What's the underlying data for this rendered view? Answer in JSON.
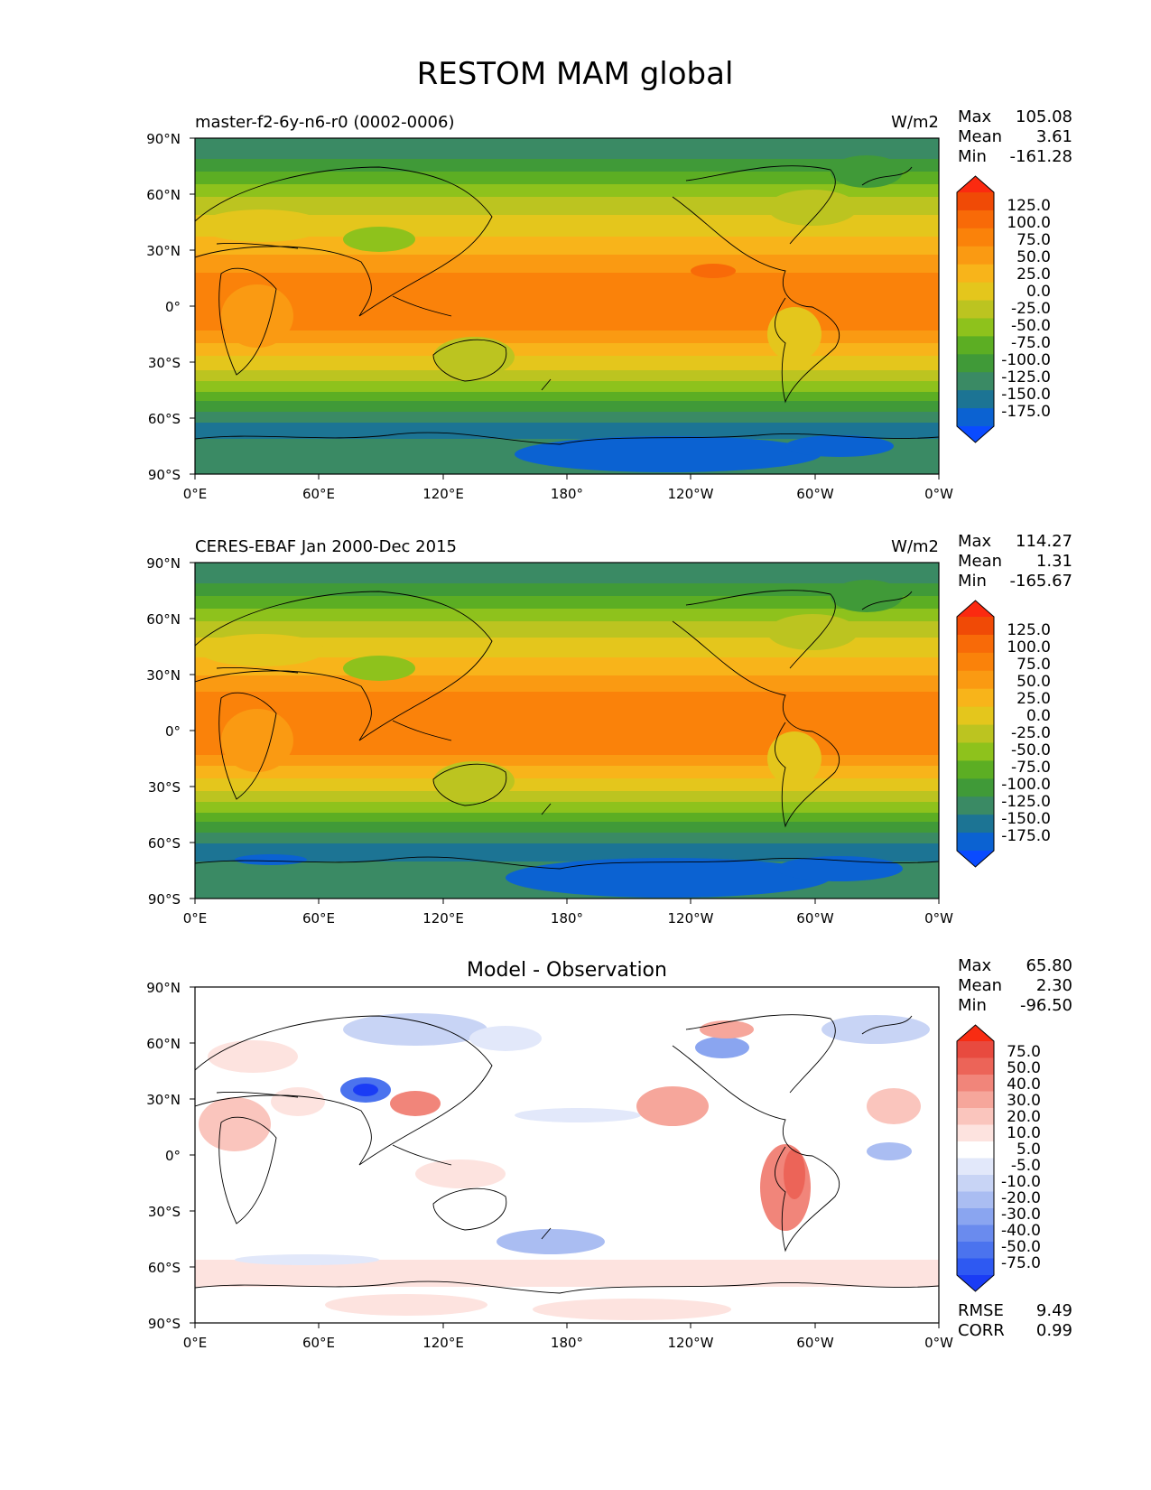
{
  "title": "RESTOM MAM global",
  "colors": {
    "main_scale": [
      "#0a4bff",
      "#0b62d2",
      "#1c7494",
      "#3a8a64",
      "#409a38",
      "#5cae23",
      "#8ec21c",
      "#bcc420",
      "#e4c61c",
      "#f8b41a",
      "#fa9a12",
      "#fa820a",
      "#f86a08",
      "#f04a06",
      "#fb2a10"
    ],
    "diff_scale": [
      "#1a3cf5",
      "#2e59f2",
      "#4b73ee",
      "#6a8bee",
      "#8aa5f0",
      "#aabdf2",
      "#c8d4f5",
      "#e2e8fa",
      "#ffffff",
      "#fde3df",
      "#fac5bd",
      "#f6a69b",
      "#f1857a",
      "#ec6458",
      "#e84a3f",
      "#f82c12"
    ]
  },
  "panels": [
    {
      "id": "model",
      "left_title": "master-f2-6y-n6-r0 (0002-0006)",
      "center_title": "",
      "units": "W/m2",
      "stats": [
        {
          "label": "Max",
          "value": "105.08"
        },
        {
          "label": "Mean",
          "value": "3.61"
        },
        {
          "label": "Min",
          "value": "-161.28"
        }
      ],
      "colorbar_levels": [
        "125.0",
        "100.0",
        "75.0",
        "50.0",
        "25.0",
        "0.0",
        "-25.0",
        "-50.0",
        "-75.0",
        "-100.0",
        "-125.0",
        "-150.0",
        "-175.0"
      ]
    },
    {
      "id": "obs",
      "left_title": "CERES-EBAF Jan 2000-Dec 2015",
      "center_title": "",
      "units": "W/m2",
      "stats": [
        {
          "label": "Max",
          "value": "114.27"
        },
        {
          "label": "Mean",
          "value": "1.31"
        },
        {
          "label": "Min",
          "value": "-165.67"
        }
      ],
      "colorbar_levels": [
        "125.0",
        "100.0",
        "75.0",
        "50.0",
        "25.0",
        "0.0",
        "-25.0",
        "-50.0",
        "-75.0",
        "-100.0",
        "-125.0",
        "-150.0",
        "-175.0"
      ]
    },
    {
      "id": "diff",
      "left_title": "",
      "center_title": "Model - Observation",
      "units": "",
      "stats": [
        {
          "label": "Max",
          "value": "65.80"
        },
        {
          "label": "Mean",
          "value": "2.30"
        },
        {
          "label": "Min",
          "value": "-96.50"
        }
      ],
      "colorbar_levels": [
        "75.0",
        "50.0",
        "40.0",
        "30.0",
        "20.0",
        "10.0",
        "5.0",
        "-5.0",
        "-10.0",
        "-20.0",
        "-30.0",
        "-40.0",
        "-50.0",
        "-75.0"
      ],
      "bottom_stats": [
        {
          "label": "RMSE",
          "value": "9.49"
        },
        {
          "label": "CORR",
          "value": "0.99"
        }
      ]
    }
  ],
  "lat_ticks": [
    "90°N",
    "60°N",
    "30°N",
    "0°",
    "30°S",
    "60°S",
    "90°S"
  ],
  "lon_ticks": [
    "0°E",
    "60°E",
    "120°E",
    "180°",
    "120°W",
    "60°W",
    "0°W"
  ]
}
